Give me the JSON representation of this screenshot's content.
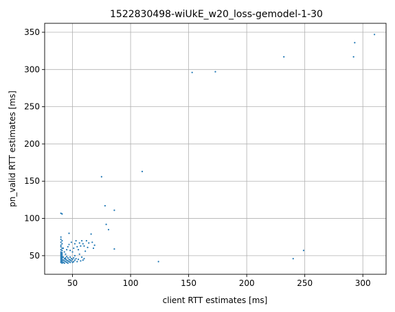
{
  "chart_data": {
    "type": "scatter",
    "title": "1522830498-wiUkE_w20_loss-gemodel-1-30",
    "xlabel": "client RTT estimates [ms]",
    "ylabel": "pn_valid RTT estimates [ms]",
    "xlim": [
      26,
      320
    ],
    "ylim": [
      25,
      362
    ],
    "xticks": [
      50,
      100,
      150,
      200,
      250,
      300
    ],
    "yticks": [
      50,
      100,
      150,
      200,
      250,
      300,
      350
    ],
    "grid": true,
    "point_color": "#1f77b4",
    "series": [
      {
        "points": [
          [
            40,
            107
          ],
          [
            41,
            106
          ],
          [
            40,
            75
          ],
          [
            40,
            72
          ],
          [
            41,
            70
          ],
          [
            40,
            68
          ],
          [
            41,
            66
          ],
          [
            40,
            64
          ],
          [
            40,
            62
          ],
          [
            41,
            60
          ],
          [
            40,
            58
          ],
          [
            41,
            57
          ],
          [
            40,
            55
          ],
          [
            41,
            54
          ],
          [
            40,
            53
          ],
          [
            41,
            52
          ],
          [
            40,
            51
          ],
          [
            41,
            50
          ],
          [
            40,
            49
          ],
          [
            41,
            48
          ],
          [
            40,
            47
          ],
          [
            41,
            46
          ],
          [
            40,
            45
          ],
          [
            41,
            44
          ],
          [
            40,
            43
          ],
          [
            41,
            42
          ],
          [
            40,
            41
          ],
          [
            41,
            40
          ],
          [
            42,
            48
          ],
          [
            42,
            44
          ],
          [
            42,
            41
          ],
          [
            43,
            46
          ],
          [
            43,
            43
          ],
          [
            43,
            40
          ],
          [
            44,
            47
          ],
          [
            44,
            42
          ],
          [
            44,
            45
          ],
          [
            45,
            41
          ],
          [
            45,
            49
          ],
          [
            45,
            44
          ],
          [
            46,
            43
          ],
          [
            46,
            47
          ],
          [
            46,
            40
          ],
          [
            47,
            45
          ],
          [
            47,
            42
          ],
          [
            48,
            48
          ],
          [
            48,
            44
          ],
          [
            48,
            41
          ],
          [
            49,
            46
          ],
          [
            49,
            43
          ],
          [
            50,
            45
          ],
          [
            50,
            41
          ],
          [
            51,
            47
          ],
          [
            51,
            42
          ],
          [
            52,
            44
          ],
          [
            53,
            46
          ],
          [
            54,
            42
          ],
          [
            55,
            45
          ],
          [
            57,
            43
          ],
          [
            59,
            44
          ],
          [
            42,
            60
          ],
          [
            43,
            55
          ],
          [
            44,
            52
          ],
          [
            45,
            58
          ],
          [
            46,
            62
          ],
          [
            47,
            80
          ],
          [
            47,
            65
          ],
          [
            48,
            57
          ],
          [
            49,
            68
          ],
          [
            50,
            55
          ],
          [
            51,
            60
          ],
          [
            52,
            66
          ],
          [
            53,
            70
          ],
          [
            54,
            62
          ],
          [
            55,
            58
          ],
          [
            56,
            67
          ],
          [
            57,
            63
          ],
          [
            58,
            70
          ],
          [
            59,
            66
          ],
          [
            60,
            63
          ],
          [
            61,
            56
          ],
          [
            62,
            70
          ],
          [
            63,
            61
          ],
          [
            64,
            67
          ],
          [
            66,
            79
          ],
          [
            67,
            68
          ],
          [
            68,
            60
          ],
          [
            69,
            64
          ],
          [
            52,
            50
          ],
          [
            56,
            52
          ],
          [
            58,
            48
          ],
          [
            60,
            46
          ],
          [
            75,
            156
          ],
          [
            78,
            117
          ],
          [
            79,
            92
          ],
          [
            81,
            85
          ],
          [
            86,
            111
          ],
          [
            86,
            59
          ],
          [
            110,
            163
          ],
          [
            124,
            42
          ],
          [
            153,
            296
          ],
          [
            173,
            297
          ],
          [
            232,
            317
          ],
          [
            240,
            46
          ],
          [
            249,
            57
          ],
          [
            292,
            317
          ],
          [
            293,
            336
          ],
          [
            310,
            347
          ]
        ]
      }
    ]
  }
}
